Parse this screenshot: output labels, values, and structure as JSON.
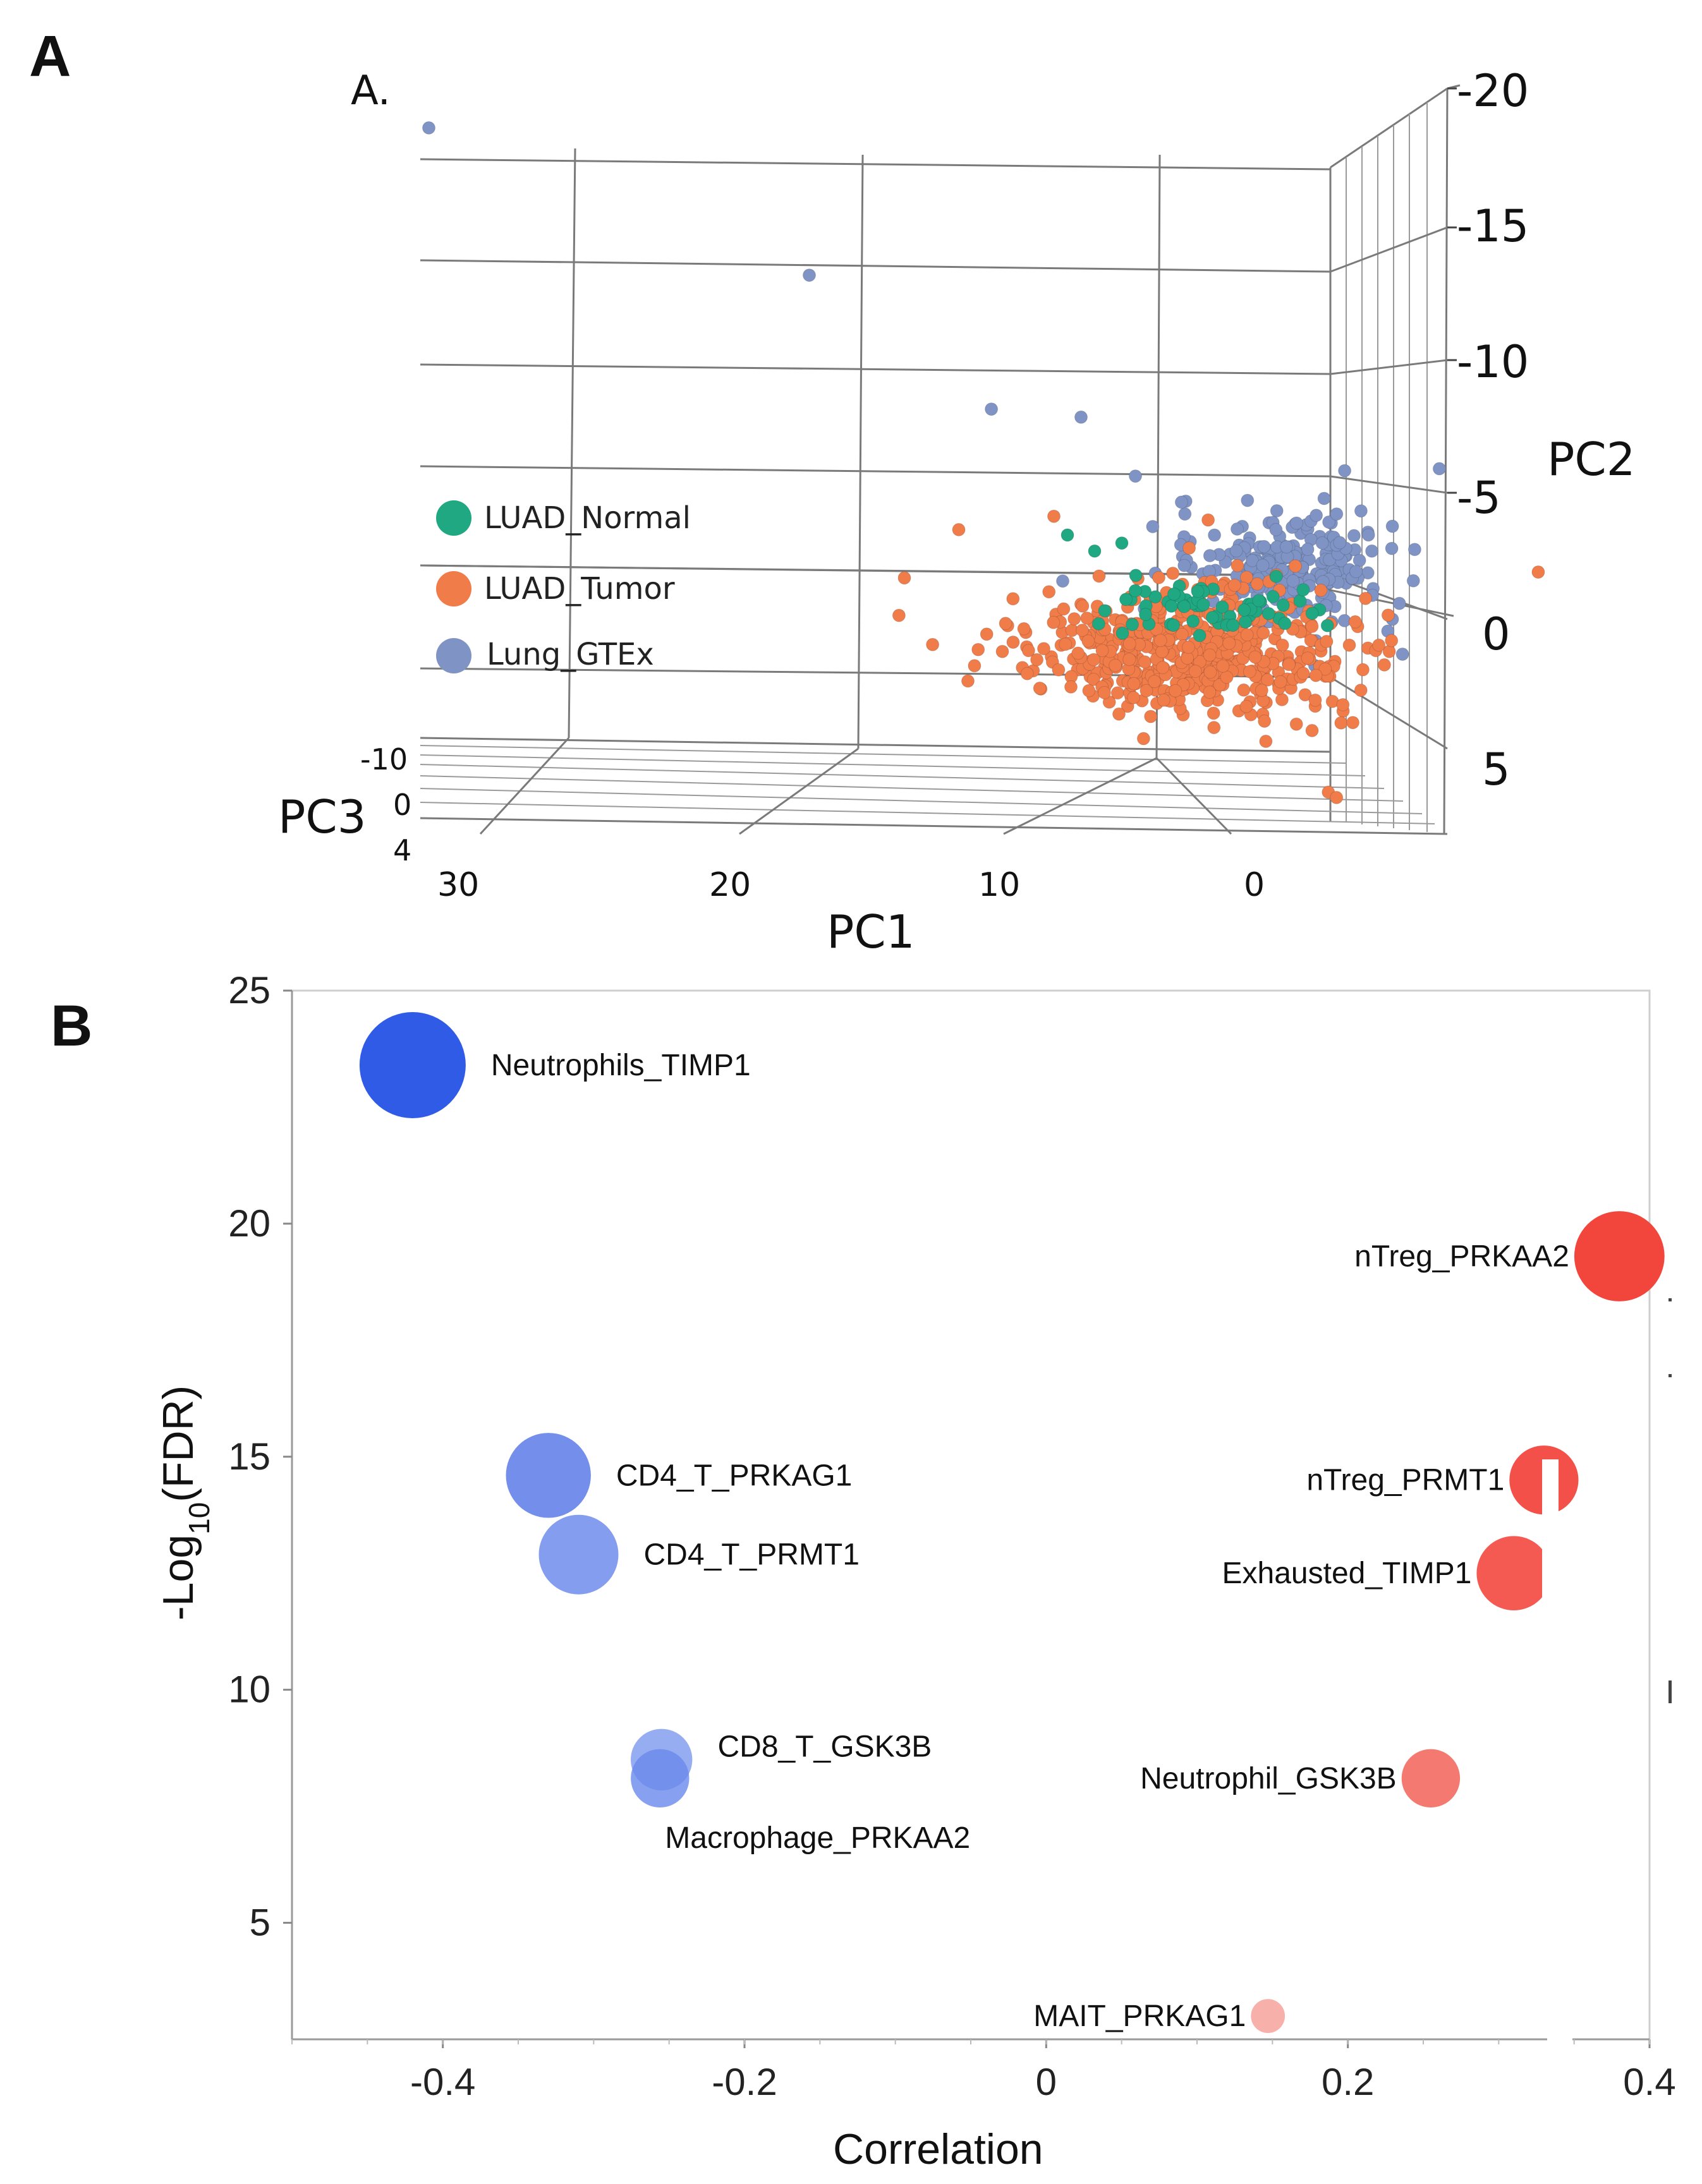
{
  "panels": {
    "a_letter": "A",
    "a_sublabel": "A.",
    "b_letter": "B"
  },
  "legend": [
    {
      "label": "LUAD_Normal",
      "color": "#20a882"
    },
    {
      "label": "LUAD_Tumor",
      "color": "#f07c4a"
    },
    {
      "label": "Lung_GTEx",
      "color": "#7f93c4"
    }
  ],
  "chart_data": [
    {
      "type": "scatter3d",
      "title": "A.",
      "xlabel": "PC1",
      "ylabel": "PC2",
      "zlabel": "PC3",
      "pc1_ticks": [
        "30",
        "20",
        "10",
        "0"
      ],
      "pc2_ticks": [
        "-20",
        "-15",
        "-10",
        "-5",
        "0",
        "5"
      ],
      "pc3_ticks": [
        "-10",
        "0",
        "4"
      ],
      "series": [
        {
          "name": "Lung_GTEx",
          "color": "#7f93c4",
          "clusters": [
            {
              "pc1": -1.0,
              "pc2": -2.5,
              "spread_pc1": 3.5,
              "spread_pc2": 1.8,
              "n": 230
            }
          ],
          "points": [
            [
              30.5,
              -19.0
            ],
            [
              16.5,
              -13.5
            ],
            [
              9.8,
              -8.5
            ],
            [
              6.5,
              -8.2
            ],
            [
              4.5,
              -6.0
            ],
            [
              -3.2,
              -6.2
            ],
            [
              -3.8,
              -4.7
            ],
            [
              -4.2,
              -3.2
            ]
          ]
        },
        {
          "name": "LUAD_Tumor",
          "color": "#f07c4a",
          "clusters": [
            {
              "pc1": 2.5,
              "pc2": 0.5,
              "spread_pc1": 5.0,
              "spread_pc2": 2.0,
              "n": 520
            }
          ],
          "points": [
            [
              13.0,
              -2.2
            ],
            [
              13.2,
              -0.8
            ],
            [
              9.0,
              0.2
            ],
            [
              4.2,
              3.8
            ],
            [
              -2.6,
              5.8
            ],
            [
              -2.9,
              6.0
            ],
            [
              -3.5,
              3.2
            ],
            [
              -2.0,
              3.5
            ],
            [
              11.0,
              -4.0
            ],
            [
              7.5,
              -4.5
            ]
          ]
        },
        {
          "name": "LUAD_Normal",
          "color": "#20a882",
          "clusters": [
            {
              "pc1": 1.5,
              "pc2": -1.0,
              "spread_pc1": 3.2,
              "spread_pc2": 0.8,
              "n": 60
            }
          ],
          "points": [
            [
              7.0,
              -3.8
            ],
            [
              6.0,
              -3.2
            ],
            [
              5.0,
              -3.5
            ],
            [
              2.0,
              -1.2
            ],
            [
              0.5,
              -1.0
            ],
            [
              -1.0,
              -0.5
            ]
          ]
        }
      ]
    },
    {
      "type": "bubble",
      "xlabel": "Correlation",
      "ylabel_main": "-Log",
      "ylabel_sub": "10",
      "ylabel_tail": "(FDR)",
      "xlim": [
        -0.5,
        0.4
      ],
      "ylim": [
        2.5,
        25
      ],
      "xticks": [
        -0.4,
        -0.2,
        0,
        0.2,
        0.4
      ],
      "xtick_labels": [
        "-0.4",
        "-0.2",
        "0",
        "0.2",
        "0.4"
      ],
      "yticks": [
        5,
        10,
        15,
        20,
        25
      ],
      "ytick_labels": [
        "5",
        "10",
        "15",
        "20",
        "25"
      ],
      "points": [
        {
          "label": "Neutrophils_TIMP1",
          "x": -0.42,
          "y": 23.4,
          "size": 1.0,
          "color": "#2f5be6",
          "opacity": 1.0
        },
        {
          "label": "CD4_T_PRKAG1",
          "x": -0.33,
          "y": 14.6,
          "size": 0.8,
          "color": "#5a7ae8",
          "opacity": 0.85
        },
        {
          "label": "CD4_T_PRMT1",
          "x": -0.31,
          "y": 12.9,
          "size": 0.75,
          "color": "#6f8cec",
          "opacity": 0.85
        },
        {
          "label": "CD8_T_GSK3B",
          "x": -0.255,
          "y": 8.5,
          "size": 0.58,
          "color": "#7d98ee",
          "opacity": 0.8
        },
        {
          "label": "Macrophage_PRKAA2",
          "x": -0.256,
          "y": 8.1,
          "size": 0.55,
          "color": "#6a88ec",
          "opacity": 0.8
        },
        {
          "label": "nTreg_PRKAA2",
          "x": 0.38,
          "y": 19.3,
          "size": 0.85,
          "color": "#f2453c",
          "opacity": 1.0
        },
        {
          "label": "nTreg_PRMT1",
          "x": 0.33,
          "y": 14.5,
          "size": 0.65,
          "color": "#f3504a",
          "opacity": 1.0
        },
        {
          "label": "Exhausted_TIMP1",
          "x": 0.31,
          "y": 12.5,
          "size": 0.7,
          "color": "#f45a52",
          "opacity": 1.0
        },
        {
          "label": "Neutrophil_GSK3B",
          "x": 0.255,
          "y": 8.1,
          "size": 0.55,
          "color": "#f36a62",
          "opacity": 0.9
        },
        {
          "label": "MAIT_PRKAG1",
          "x": 0.147,
          "y": 3.0,
          "size": 0.32,
          "color": "#f7a7a2",
          "opacity": 0.9
        }
      ]
    }
  ]
}
